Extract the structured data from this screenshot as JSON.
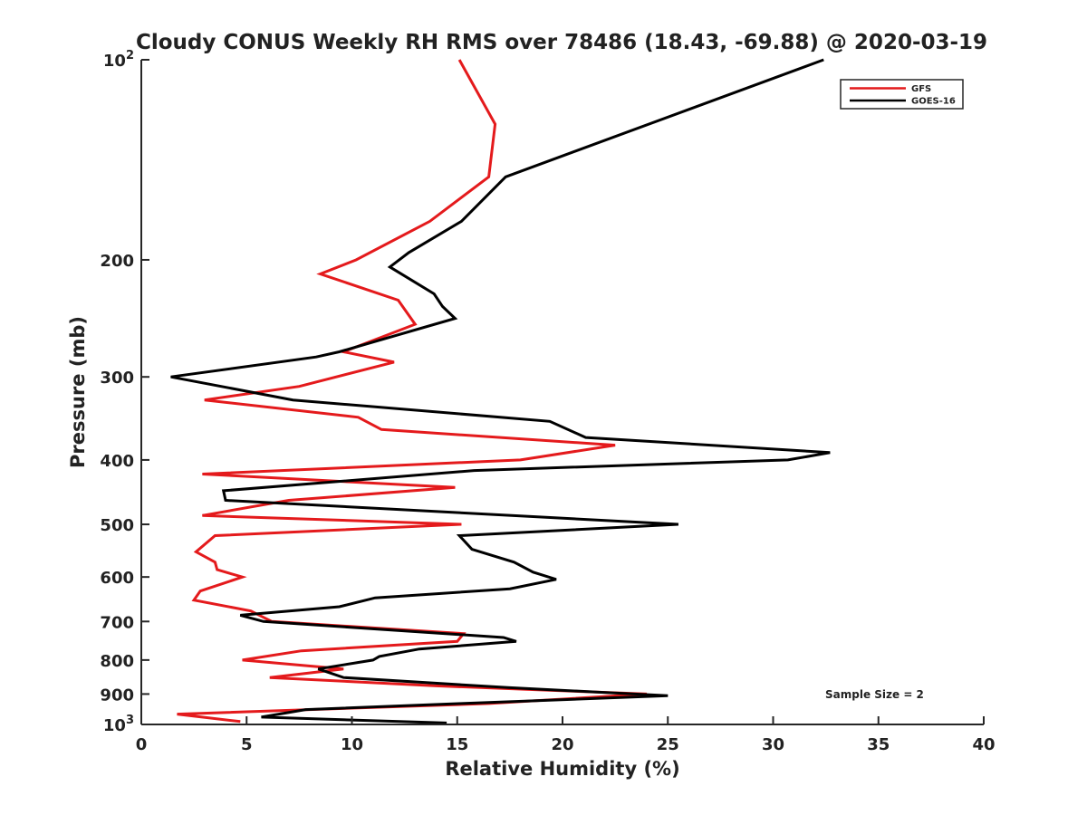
{
  "chart_data": {
    "type": "line",
    "title": "Cloudy CONUS Weekly RH RMS over 78486 (18.43, -69.88) @ 2020-03-19",
    "xlabel": "Relative Humidity (%)",
    "ylabel": "Pressure (mb)",
    "xlim": [
      0,
      40
    ],
    "ylim": [
      100,
      1000
    ],
    "y_scale": "log",
    "y_reversed": false,
    "grid": false,
    "legend_position": "top-right",
    "x_ticks": [
      "0",
      "5",
      "10",
      "15",
      "20",
      "25",
      "30",
      "35",
      "40"
    ],
    "y_ticks": [
      {
        "value": 100,
        "base": "10",
        "exp": "2"
      },
      {
        "value": 200,
        "label": "200"
      },
      {
        "value": 300,
        "label": "300"
      },
      {
        "value": 400,
        "label": "400"
      },
      {
        "value": 500,
        "label": "500"
      },
      {
        "value": 600,
        "label": "600"
      },
      {
        "value": 700,
        "label": "700"
      },
      {
        "value": 800,
        "label": "800"
      },
      {
        "value": 900,
        "label": "900"
      },
      {
        "value": 1000,
        "base": "10",
        "exp": "3"
      }
    ],
    "series": [
      {
        "name": "GFS",
        "color": "#e41a1c",
        "points": [
          [
            15.1,
            100
          ],
          [
            16.8,
            125
          ],
          [
            16.5,
            150
          ],
          [
            13.7,
            175
          ],
          [
            10.2,
            200
          ],
          [
            8.5,
            210
          ],
          [
            12.2,
            230
          ],
          [
            13.0,
            250
          ],
          [
            9.6,
            275
          ],
          [
            12.0,
            285
          ],
          [
            7.5,
            310
          ],
          [
            3.0,
            325
          ],
          [
            10.3,
            345
          ],
          [
            11.4,
            360
          ],
          [
            22.5,
            380
          ],
          [
            18.0,
            400
          ],
          [
            2.9,
            420
          ],
          [
            14.9,
            440
          ],
          [
            7.0,
            460
          ],
          [
            2.9,
            485
          ],
          [
            15.2,
            500
          ],
          [
            3.5,
            520
          ],
          [
            2.6,
            550
          ],
          [
            3.5,
            570
          ],
          [
            3.6,
            585
          ],
          [
            4.8,
            600
          ],
          [
            2.8,
            630
          ],
          [
            2.5,
            650
          ],
          [
            5.2,
            675
          ],
          [
            5.4,
            680
          ],
          [
            6.2,
            700
          ],
          [
            15.3,
            730
          ],
          [
            15.0,
            750
          ],
          [
            7.6,
            775
          ],
          [
            4.8,
            800
          ],
          [
            9.6,
            825
          ],
          [
            6.1,
            850
          ],
          [
            14.0,
            875
          ],
          [
            24.0,
            900
          ],
          [
            16.5,
            930
          ],
          [
            1.7,
            965
          ],
          [
            4.7,
            990
          ]
        ]
      },
      {
        "name": "GOES-16",
        "color": "#000000",
        "points": [
          [
            32.4,
            100
          ],
          [
            17.3,
            150
          ],
          [
            15.2,
            175
          ],
          [
            12.7,
            195
          ],
          [
            11.8,
            205
          ],
          [
            13.9,
            225
          ],
          [
            14.3,
            235
          ],
          [
            14.9,
            245
          ],
          [
            9.4,
            275
          ],
          [
            8.3,
            280
          ],
          [
            1.4,
            300
          ],
          [
            7.2,
            325
          ],
          [
            19.4,
            350
          ],
          [
            21.1,
            370
          ],
          [
            32.7,
            390
          ],
          [
            30.7,
            400
          ],
          [
            15.8,
            415
          ],
          [
            3.9,
            445
          ],
          [
            4.0,
            460
          ],
          [
            25.5,
            500
          ],
          [
            15.1,
            520
          ],
          [
            15.7,
            545
          ],
          [
            17.7,
            570
          ],
          [
            18.6,
            590
          ],
          [
            19.7,
            605
          ],
          [
            17.5,
            625
          ],
          [
            11.1,
            645
          ],
          [
            9.4,
            665
          ],
          [
            4.7,
            685
          ],
          [
            5.8,
            700
          ],
          [
            17.2,
            740
          ],
          [
            17.8,
            750
          ],
          [
            13.2,
            770
          ],
          [
            11.3,
            790
          ],
          [
            11.0,
            800
          ],
          [
            8.4,
            825
          ],
          [
            9.6,
            850
          ],
          [
            17.4,
            880
          ],
          [
            25.0,
            905
          ],
          [
            15.2,
            930
          ],
          [
            7.8,
            950
          ],
          [
            5.7,
            975
          ],
          [
            14.5,
            995
          ]
        ]
      }
    ],
    "annotation": "Sample Size = 2"
  }
}
